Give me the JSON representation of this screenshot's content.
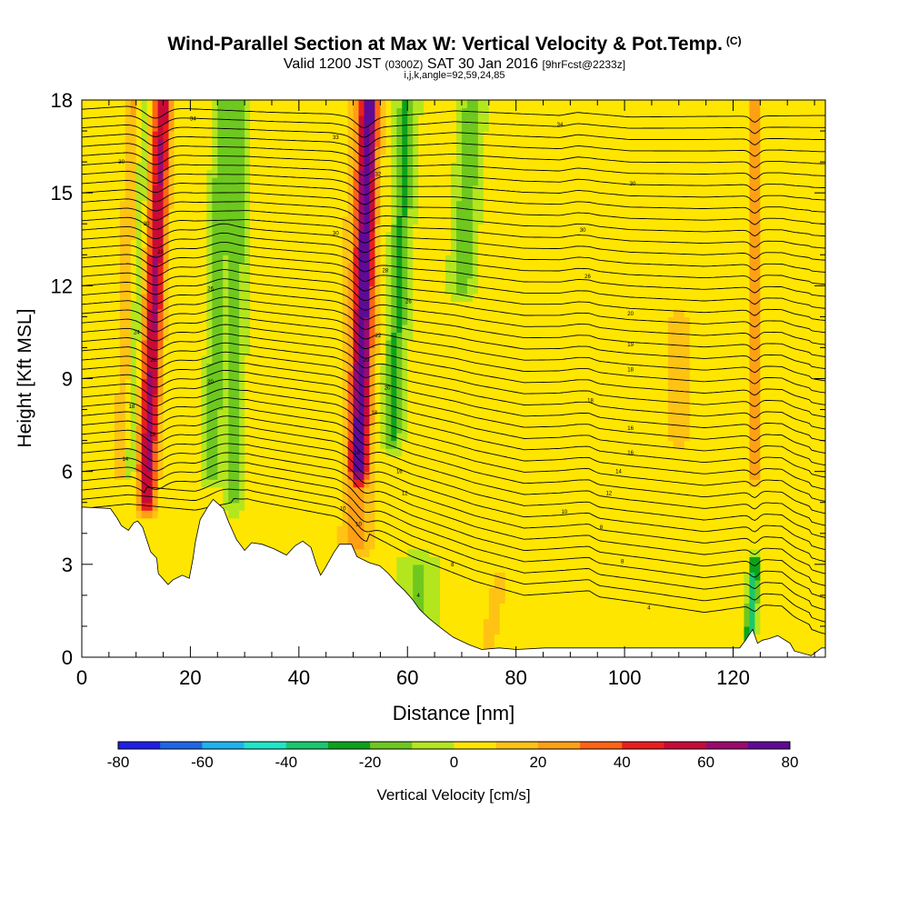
{
  "header": {
    "title": "Wind-Parallel Section at Max W: Vertical Velocity & Pot.Temp.",
    "copyright": "(C)",
    "valid_prefix": "Valid 1200 JST",
    "valid_utc": "(0300Z)",
    "valid_date": "SAT 30 Jan 2016",
    "forecast": "[9hrFcst@2233z]",
    "params": "i,j,k,angle=92,59,24,85"
  },
  "colors": {
    "scale": [
      "#1f1fe6",
      "#1f66e6",
      "#1fb4ee",
      "#1ee6c8",
      "#19c86e",
      "#0ca21c",
      "#6ec81e",
      "#b4e61e",
      "#ffe600",
      "#ffc314",
      "#ffa014",
      "#ff6414",
      "#eb1e1e",
      "#c80a37",
      "#9b0a6e",
      "#5f0a96"
    ]
  },
  "chart_data": {
    "type": "heatmap",
    "xlabel": "Distance [nm]",
    "ylabel": "Height [Kft MSL]",
    "xlim": [
      0,
      137
    ],
    "ylim": [
      0,
      18
    ],
    "xticks": [
      0,
      20,
      40,
      60,
      80,
      100,
      120
    ],
    "yticks": [
      0,
      3,
      6,
      9,
      12,
      15,
      18
    ],
    "colorbar": {
      "label": "Vertical Velocity [cm/s]",
      "ticks": [
        -80,
        -60,
        -40,
        -20,
        0,
        20,
        40,
        60,
        80
      ],
      "bins": [
        -80,
        -70,
        -60,
        -50,
        -40,
        -30,
        -20,
        -10,
        0,
        10,
        20,
        30,
        40,
        50,
        60,
        70,
        80
      ]
    },
    "background_w": 3,
    "plumes": [
      {
        "x_bottom": 9,
        "x_top": 11,
        "y_bottom": 6,
        "y_top": 18,
        "w": 28,
        "width": 2.5
      },
      {
        "x_bottom": 12,
        "x_top": 15,
        "y_bottom": 5,
        "y_top": 18,
        "w": 55,
        "width": 1.6
      },
      {
        "x_bottom": 9,
        "x_top": 11.5,
        "y_bottom": 6,
        "y_top": 18,
        "w": -40,
        "width": 1.2
      },
      {
        "x_bottom": 24,
        "x_top": 26,
        "y_bottom": 6,
        "y_top": 18,
        "w": -22,
        "width": 1.5
      },
      {
        "x_bottom": 28,
        "x_top": 29,
        "y_bottom": 5,
        "y_top": 18,
        "w": -18,
        "width": 1.6
      },
      {
        "x_bottom": 51,
        "x_top": 53,
        "y_bottom": 6,
        "y_top": 18,
        "w": 60,
        "width": 1.6
      },
      {
        "x_bottom": 50.5,
        "x_top": 52,
        "y_bottom": 3.5,
        "y_top": 18,
        "w": 20,
        "width": 3.0
      },
      {
        "x_bottom": 57,
        "x_top": 60,
        "y_bottom": 7,
        "y_top": 18,
        "w": -25,
        "width": 1.8
      },
      {
        "x_bottom": 70,
        "x_top": 72,
        "y_bottom": 12,
        "y_top": 18,
        "w": -22,
        "width": 2.0
      },
      {
        "x_bottom": 124,
        "x_top": 124,
        "y_bottom": 6,
        "y_top": 18,
        "w": 38,
        "width": 0.8
      },
      {
        "x_bottom": 123,
        "x_top": 124,
        "y_bottom": 0.5,
        "y_top": 3,
        "w": -40,
        "width": 0.9
      },
      {
        "x_bottom": 75,
        "x_top": 77,
        "y_bottom": 0.5,
        "y_top": 2.5,
        "w": 16,
        "width": 1.5
      },
      {
        "x_bottom": 62,
        "x_top": 62,
        "y_bottom": 1,
        "y_top": 3,
        "w": -15,
        "width": 3.0
      },
      {
        "x_bottom": 110,
        "x_top": 110,
        "y_bottom": 7,
        "y_top": 11,
        "w": 15,
        "width": 2.0
      }
    ],
    "terrain": {
      "x": [
        0,
        5.3,
        6.5,
        7.3,
        8.6,
        9.6,
        10.3,
        11.2,
        12.7,
        13.8,
        14.1,
        15.9,
        16.8,
        18.5,
        19.8,
        20.5,
        20.9,
        21.8,
        23.2,
        24.2,
        26.1,
        27.1,
        28.5,
        30.0,
        31.3,
        33.2,
        35.4,
        37.7,
        39.3,
        40.7,
        42.2,
        43.2,
        44.0,
        44.9,
        46.5,
        47.5,
        49.3,
        49.7,
        50.7,
        53.0,
        54.9,
        56.5,
        58.0,
        59.5,
        61.0,
        62.2,
        64.0,
        66.1,
        68.4,
        71.4,
        73.7,
        76.9,
        80.1,
        85.3,
        90.0,
        95.5,
        100.9,
        106.1,
        111.2,
        116.7,
        121.2,
        122.3,
        123.6,
        124.5,
        125.4,
        126.6,
        128.2,
        130.5,
        131.3,
        134.4,
        136.3,
        137.0
      ],
      "y": [
        4.85,
        4.8,
        4.5,
        4.25,
        4.1,
        4.35,
        4.4,
        4.2,
        3.4,
        3.2,
        2.7,
        2.35,
        2.5,
        2.65,
        2.55,
        3.2,
        3.7,
        4.45,
        4.85,
        5.1,
        4.8,
        4.35,
        3.8,
        3.45,
        3.7,
        3.65,
        3.5,
        3.3,
        3.6,
        3.75,
        3.55,
        3.0,
        2.65,
        2.9,
        3.4,
        3.65,
        3.65,
        3.65,
        3.25,
        3.05,
        2.95,
        2.7,
        2.4,
        2.15,
        1.85,
        1.55,
        1.25,
        0.95,
        0.65,
        0.4,
        0.25,
        0.3,
        0.25,
        0.3,
        0.3,
        0.3,
        0.3,
        0.3,
        0.3,
        0.3,
        0.3,
        0.55,
        0.9,
        0.45,
        0.55,
        0.6,
        0.7,
        0.45,
        0.2,
        0.05,
        0.3,
        0.3
      ]
    },
    "theta_contours": {
      "base": [
        [
          0,
          8.5,
          8.7,
          20.9,
          30.5,
          46.8,
          60.9,
          72.5,
          81.5,
          85.7,
          93.4,
          95.3,
          103.5,
          114.7,
          116.9,
          124.8,
          129.0,
          131.3,
          134.1,
          134.4,
          136.0,
          137.0
        ],
        [
          4.8,
          4.95,
          4.95,
          4.75,
          5.1,
          4.55,
          3.25,
          2.45,
          2.0,
          2.05,
          2.15,
          1.95,
          1.75,
          1.45,
          1.5,
          1.7,
          1.65,
          1.3,
          1.05,
          0.9,
          0.8,
          0.75
        ]
      ],
      "top": [
        [
          0,
          8.5,
          35.4,
          45.9,
          51.7,
          62.5,
          68.7,
          88.1,
          91.3,
          100.9,
          137.0
        ],
        [
          17.7,
          17.8,
          17.6,
          17.55,
          17.4,
          17.55,
          17.65,
          17.5,
          17.6,
          17.45,
          17.5
        ]
      ],
      "count": 44,
      "waves": [
        {
          "x": 13.5,
          "amp": -0.35,
          "width": 2.5,
          "y_bottom": 5.5,
          "y_top": 18
        },
        {
          "x": 52,
          "amp": -0.3,
          "width": 2.0,
          "y_bottom": 4,
          "y_top": 18
        },
        {
          "x": 26,
          "amp": 0.18,
          "width": 3.0,
          "y_bottom": 5,
          "y_top": 14
        },
        {
          "x": 124,
          "amp": -0.2,
          "width": 1.0,
          "y_bottom": 0.5,
          "y_top": 18
        }
      ],
      "labels": [
        {
          "x": 20.5,
          "y": 17.4,
          "text": "34"
        },
        {
          "x": 46.8,
          "y": 16.8,
          "text": "33"
        },
        {
          "x": 88.1,
          "y": 17.2,
          "text": "34"
        },
        {
          "x": 7.3,
          "y": 16.0,
          "text": "30"
        },
        {
          "x": 54.6,
          "y": 15.6,
          "text": "32"
        },
        {
          "x": 101.5,
          "y": 15.3,
          "text": "30"
        },
        {
          "x": 11.9,
          "y": 14.0,
          "text": "30"
        },
        {
          "x": 46.8,
          "y": 13.7,
          "text": "30"
        },
        {
          "x": 92.3,
          "y": 13.8,
          "text": "30"
        },
        {
          "x": 14.5,
          "y": 13.1,
          "text": "28"
        },
        {
          "x": 55.9,
          "y": 12.5,
          "text": "28"
        },
        {
          "x": 93.2,
          "y": 12.3,
          "text": "26"
        },
        {
          "x": 23.7,
          "y": 11.9,
          "text": "26"
        },
        {
          "x": 60.2,
          "y": 11.5,
          "text": "26"
        },
        {
          "x": 101.1,
          "y": 11.1,
          "text": "20"
        },
        {
          "x": 10.1,
          "y": 10.5,
          "text": "24"
        },
        {
          "x": 54.6,
          "y": 10.4,
          "text": "22"
        },
        {
          "x": 101.1,
          "y": 10.1,
          "text": "19"
        },
        {
          "x": 13.2,
          "y": 9.6,
          "text": "20"
        },
        {
          "x": 52.4,
          "y": 9.6,
          "text": "20"
        },
        {
          "x": 101.1,
          "y": 9.3,
          "text": "18"
        },
        {
          "x": 23.7,
          "y": 8.9,
          "text": "20"
        },
        {
          "x": 56.3,
          "y": 8.7,
          "text": "20"
        },
        {
          "x": 93.7,
          "y": 8.3,
          "text": "18"
        },
        {
          "x": 9.2,
          "y": 8.1,
          "text": "18"
        },
        {
          "x": 53.9,
          "y": 7.9,
          "text": "18"
        },
        {
          "x": 101.1,
          "y": 7.4,
          "text": "16"
        },
        {
          "x": 13.0,
          "y": 7.2,
          "text": "18"
        },
        {
          "x": 50.7,
          "y": 6.6,
          "text": "16"
        },
        {
          "x": 101.1,
          "y": 6.6,
          "text": "16"
        },
        {
          "x": 8.0,
          "y": 6.4,
          "text": "14"
        },
        {
          "x": 58.5,
          "y": 6.0,
          "text": "16"
        },
        {
          "x": 98.9,
          "y": 6.0,
          "text": "14"
        },
        {
          "x": 59.5,
          "y": 5.3,
          "text": "12"
        },
        {
          "x": 97.1,
          "y": 5.3,
          "text": "12"
        },
        {
          "x": 48.1,
          "y": 4.8,
          "text": "10"
        },
        {
          "x": 88.9,
          "y": 4.7,
          "text": "10"
        },
        {
          "x": 51.0,
          "y": 4.3,
          "text": "10"
        },
        {
          "x": 95.7,
          "y": 4.2,
          "text": "8"
        },
        {
          "x": 68.3,
          "y": 3.0,
          "text": "8"
        },
        {
          "x": 99.6,
          "y": 3.1,
          "text": "8"
        },
        {
          "x": 62.0,
          "y": 2.0,
          "text": "4"
        },
        {
          "x": 104.5,
          "y": 1.6,
          "text": "4"
        }
      ]
    }
  }
}
